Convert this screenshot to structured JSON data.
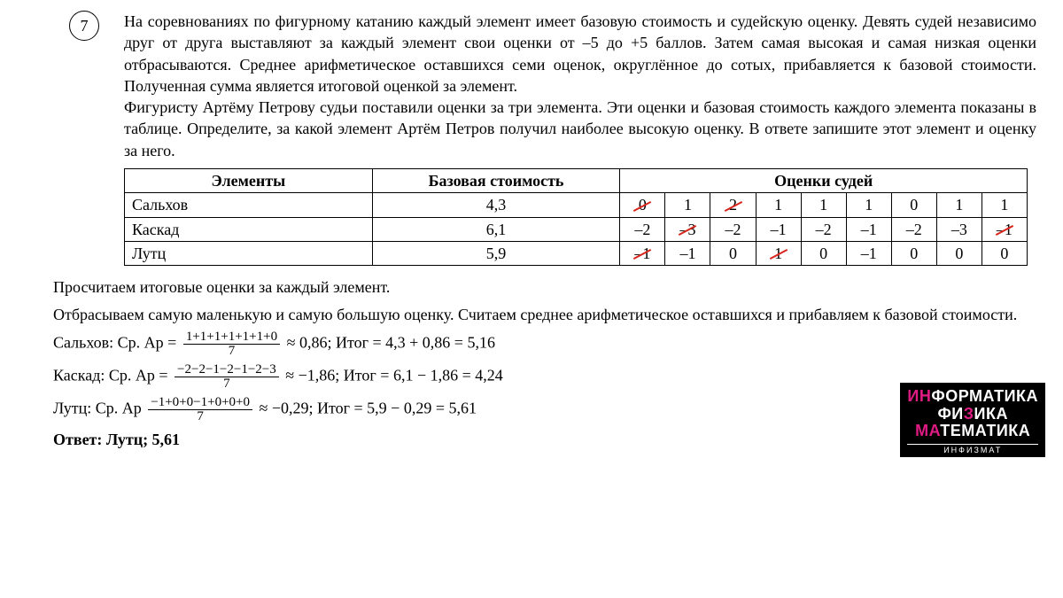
{
  "problem": {
    "number": "7",
    "text1": "На соревнованиях по фигурному катанию каждый элемент имеет базовую стоимость и судейскую оценку. Девять судей независимо друг от друга выставляют за каждый элемент свои оценки от –5 до +5 баллов. Затем самая высокая и самая низкая оценки отбрасываются. Среднее арифметическое оставшихся семи оценок, округлённое до сотых, прибавляется к базовой стоимости. Полученная сумма является итоговой оценкой за элемент.",
    "text2": "Фигуристу Артёму Петрову судьи поставили оценки за три элемента. Эти оценки и базовая стоимость каждого элемента показаны в таблице. Определите, за какой элемент Артём Петров получил наиболее высокую оценку. В ответе запишите этот элемент и оценку за него."
  },
  "table": {
    "headers": {
      "elements": "Элементы",
      "base": "Базовая стоимость",
      "judges": "Оценки судей"
    },
    "rows": [
      {
        "name": "Сальхов",
        "base": "4,3",
        "scores": [
          "0",
          "1",
          "2",
          "1",
          "1",
          "1",
          "0",
          "1",
          "1"
        ],
        "struck": [
          true,
          false,
          true,
          false,
          false,
          false,
          false,
          false,
          false
        ]
      },
      {
        "name": "Каскад",
        "base": "6,1",
        "scores": [
          "–2",
          "–3",
          "–2",
          "–1",
          "–2",
          "–1",
          "–2",
          "–3",
          "–1"
        ],
        "struck": [
          false,
          true,
          false,
          false,
          false,
          false,
          false,
          false,
          true
        ]
      },
      {
        "name": "Лутц",
        "base": "5,9",
        "scores": [
          "–1",
          "–1",
          "0",
          "1",
          "0",
          "–1",
          "0",
          "0",
          "0"
        ],
        "struck": [
          true,
          false,
          false,
          true,
          false,
          false,
          false,
          false,
          false
        ]
      }
    ]
  },
  "solution": {
    "intro": "Просчитаем итоговые оценки за каждый элемент.",
    "method": "Отбрасываем самую маленькую и самую большую оценку. Считаем среднее арифметическое оставшихся и прибавляем к базовой стоимости.",
    "lines": [
      {
        "label": "Сальхов: Ср. Ар =",
        "num": "1+1+1+1+1+1+0",
        "den": "7",
        "approx": "≈ 0,86; Итог = 4,3 + 0,86 = 5,16"
      },
      {
        "label": "Каскад: Ср. Ар =",
        "num": "−2−2−1−2−1−2−3",
        "den": "7",
        "approx": "≈ −1,86; Итог = 6,1 − 1,86 = 4,24"
      },
      {
        "label": "Лутц: Ср. Ар",
        "num": "−1+0+0−1+0+0+0",
        "den": "7",
        "approx": "≈ −0,29; Итог = 5,9 − 0,29 = 5,61"
      }
    ],
    "answer": "Ответ: Лутц; 5,61"
  },
  "logo": {
    "line1a": "ИН",
    "line1b": "ФОР",
    "line1c": "МАТИКА",
    "line2a": "ФИ",
    "line2b": "З",
    "line2c": "ИКА",
    "line3a": "МА",
    "line3b": "Т",
    "line3c": "ЕМАТИКА",
    "sub": "ИНФИЗМАТ"
  }
}
